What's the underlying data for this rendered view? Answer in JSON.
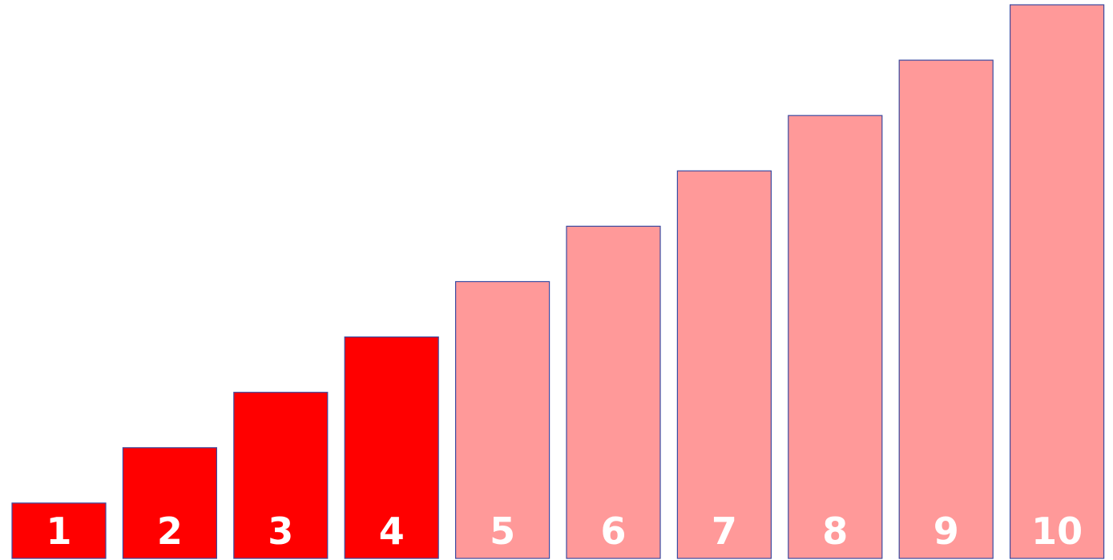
{
  "chart_data": {
    "type": "bar",
    "title": "",
    "xlabel": "",
    "ylabel": "",
    "categories": [
      "1",
      "2",
      "3",
      "4",
      "5",
      "6",
      "7",
      "8",
      "9",
      "10"
    ],
    "values": [
      1,
      2,
      3,
      4,
      5,
      6,
      7,
      8,
      9,
      10
    ],
    "ylim": [
      0,
      10
    ],
    "grid": false,
    "legend": "none",
    "highlighted_count": 4,
    "colors": {
      "highlight": "#ff0000",
      "muted": "#ff9999",
      "outline": "#3b4aa0",
      "label": "#ffffff",
      "background": "#ffffff"
    }
  }
}
